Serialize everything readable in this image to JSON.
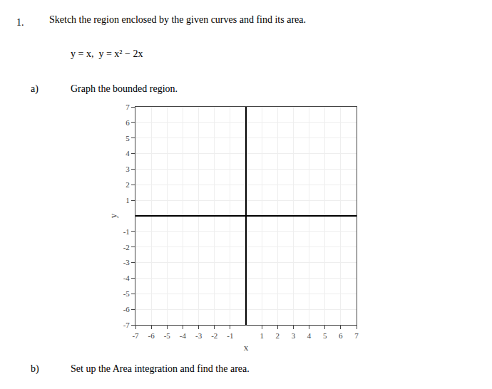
{
  "chart_data": {
    "type": "scatter",
    "title": "Sketch the region enclosed by the given curves and find its area.",
    "annotations": [
      "1.",
      "y = x,  y = x² − 2x",
      "a)",
      "Graph the bounded region.",
      "b)",
      "Set up the Area integration and find the area."
    ],
    "xlabel": "x",
    "ylabel": "y",
    "xlim": [
      -7,
      7
    ],
    "ylim": [
      -7,
      7
    ],
    "xticks": [
      -7,
      -6,
      -5,
      -4,
      -3,
      -2,
      -1,
      1,
      2,
      3,
      4,
      5,
      6,
      7
    ],
    "yticks": [
      -7,
      -6,
      -5,
      -4,
      -3,
      -2,
      -1,
      1,
      2,
      3,
      4,
      5,
      6,
      7
    ],
    "grid": true
  }
}
